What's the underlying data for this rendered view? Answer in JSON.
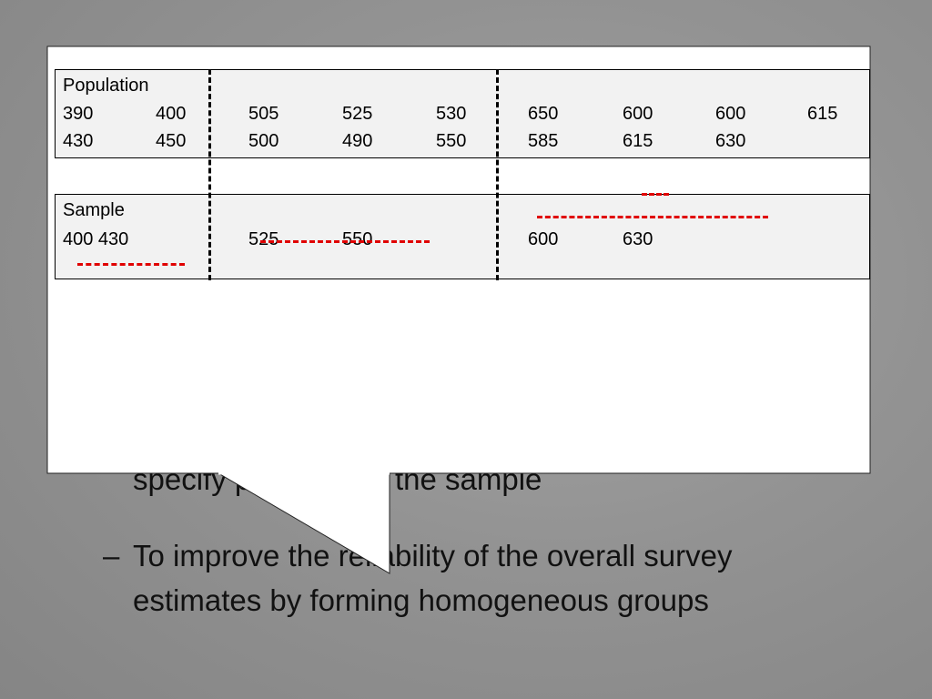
{
  "slide": {
    "bullets": [
      {
        "dash": "",
        "lines": [
          "specify precision in the sample"
        ]
      },
      {
        "dash": "–",
        "lines": [
          "To improve the reliability of the overall survey",
          "estimates by forming homogeneous groups"
        ]
      }
    ]
  },
  "callout": {
    "population": {
      "label": "Population",
      "rows": [
        [
          "390",
          "400",
          "505",
          "525",
          "530",
          "650",
          "600",
          "600",
          "615"
        ],
        [
          "430",
          "450",
          "500",
          "490",
          "550",
          "585",
          "615",
          "630"
        ]
      ]
    },
    "sample": {
      "label": "Sample",
      "rows": [
        [
          "400  430",
          "525",
          "550",
          "600",
          "630"
        ]
      ]
    }
  },
  "colors": {
    "background": "#939393",
    "callout_fill": "#ffffff",
    "table_fill": "#f2f2f2",
    "marker": "#e00000"
  }
}
